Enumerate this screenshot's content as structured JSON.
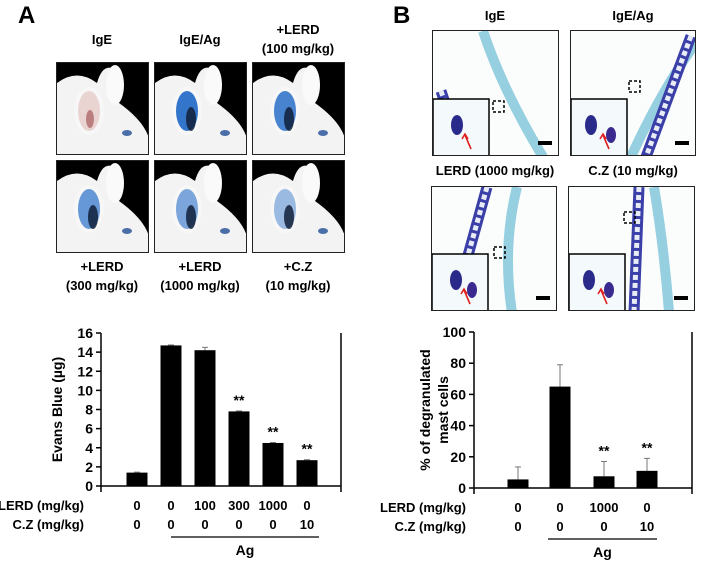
{
  "panel_a": {
    "letter": "A",
    "top_labels": [
      {
        "lines": [
          "IgE"
        ]
      },
      {
        "lines": [
          "IgE/Ag"
        ]
      },
      {
        "lines": [
          "+LERD",
          "(100 mg/kg)"
        ]
      }
    ],
    "bottom_labels": [
      {
        "lines": [
          "+LERD",
          "(300 mg/kg)"
        ]
      },
      {
        "lines": [
          "+LERD",
          "(1000 mg/kg)"
        ]
      },
      {
        "lines": [
          "+C.Z",
          "(10 mg/kg)"
        ]
      }
    ]
  },
  "panel_b": {
    "letter": "B",
    "top_labels": [
      "IgE",
      "IgE/Ag"
    ],
    "middle_labels": [
      "LERD (1000 mg/kg)",
      "C.Z (10 mg/kg)"
    ]
  },
  "chart_data": [
    {
      "type": "bar",
      "ylabel": "Evans Blue (µg)",
      "ylim": [
        0,
        16
      ],
      "yticks": [
        "0",
        "2",
        "4",
        "6",
        "8",
        "10",
        "12",
        "14",
        "16"
      ],
      "values": [
        1.4,
        14.7,
        14.2,
        7.8,
        4.5,
        2.7
      ],
      "errors": [
        0.05,
        0.05,
        0.3,
        0.05,
        0.05,
        0.05
      ],
      "annotations": [
        "",
        "",
        "",
        "**",
        "**",
        "**"
      ],
      "color": "#000000",
      "row_labels": [
        "LERD (mg/kg)",
        "C.Z (mg/kg)"
      ],
      "rows": [
        [
          "0",
          "0",
          "100",
          "300",
          "1000",
          "0"
        ],
        [
          "0",
          "0",
          "0",
          "0",
          "0",
          "10"
        ]
      ],
      "group_label": "Ag"
    },
    {
      "type": "bar",
      "ylabel": [
        "% of degranulated",
        "mast cells"
      ],
      "ylim": [
        0,
        100
      ],
      "yticks": [
        "0",
        "20",
        "40",
        "60",
        "80",
        "100"
      ],
      "values": [
        5.5,
        65,
        7.5,
        11
      ],
      "errors": [
        8,
        14,
        9.5,
        8
      ],
      "annotations": [
        "",
        "",
        "**",
        "**"
      ],
      "color": "#000000",
      "row_labels": [
        "LERD (mg/kg)",
        "C.Z (mg/kg)"
      ],
      "rows": [
        [
          "0",
          "0",
          "1000",
          "0"
        ],
        [
          "0",
          "0",
          "0",
          "10"
        ]
      ],
      "group_label": "Ag"
    }
  ]
}
